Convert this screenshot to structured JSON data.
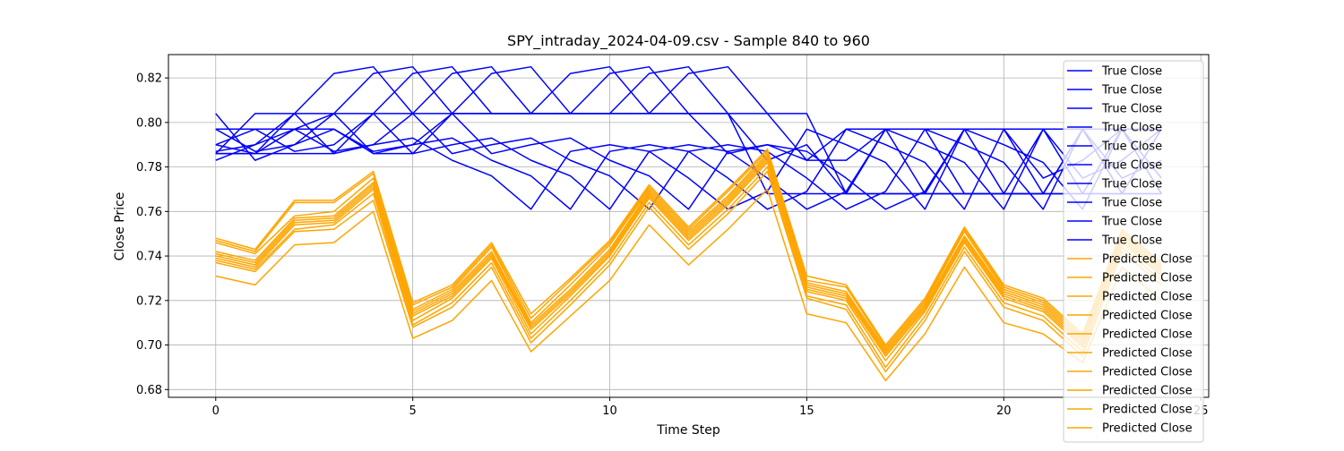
{
  "chart_data": {
    "type": "line",
    "title": "SPY_intraday_2024-04-09.csv - Sample 840 to 960",
    "xlabel": "Time Step",
    "ylabel": "Close Price",
    "xlim": [
      -1.2,
      25.2
    ],
    "ylim": [
      0.6765,
      0.8305
    ],
    "xticks": [
      {
        "value": 0,
        "label": "0"
      },
      {
        "value": 5,
        "label": "5"
      },
      {
        "value": 10,
        "label": "10"
      },
      {
        "value": 15,
        "label": "15"
      },
      {
        "value": 20,
        "label": "20"
      },
      {
        "value": 25,
        "label": "25"
      }
    ],
    "yticks": [
      {
        "value": 0.68,
        "label": "0.68"
      },
      {
        "value": 0.7,
        "label": "0.70"
      },
      {
        "value": 0.72,
        "label": "0.72"
      },
      {
        "value": 0.74,
        "label": "0.74"
      },
      {
        "value": 0.76,
        "label": "0.76"
      },
      {
        "value": 0.78,
        "label": "0.78"
      },
      {
        "value": 0.8,
        "label": "0.80"
      },
      {
        "value": 0.82,
        "label": "0.82"
      }
    ],
    "grid": true,
    "legend_position": "top-right",
    "colors": {
      "true": "#0000ff",
      "predicted": "#ffa500"
    },
    "series": [
      {
        "name": "True Close",
        "group": "true",
        "x": [
          0,
          1,
          2,
          3,
          4,
          5,
          6,
          7,
          8,
          9,
          10,
          11,
          12,
          13,
          14,
          15,
          16,
          17,
          18,
          19,
          20,
          21,
          22,
          23,
          24
        ],
        "values": [
          0.804,
          0.783,
          0.79,
          0.797,
          0.787,
          0.79,
          0.804,
          0.786,
          0.79,
          0.793,
          0.783,
          0.776,
          0.761,
          0.787,
          0.79,
          0.787,
          0.775,
          0.761,
          0.769,
          0.797,
          0.79,
          0.782,
          0.761,
          0.797,
          0.797
        ]
      },
      {
        "name": "True Close",
        "group": "true",
        "x": [
          0,
          1,
          2,
          3,
          4,
          5,
          6,
          7,
          8,
          9,
          10,
          11,
          12,
          13,
          14,
          15,
          16,
          17,
          18,
          19,
          20,
          21,
          22,
          23,
          24
        ],
        "values": [
          0.783,
          0.79,
          0.797,
          0.787,
          0.79,
          0.804,
          0.786,
          0.79,
          0.793,
          0.783,
          0.776,
          0.761,
          0.787,
          0.79,
          0.787,
          0.775,
          0.761,
          0.769,
          0.797,
          0.79,
          0.782,
          0.761,
          0.797,
          0.797,
          0.775
        ]
      },
      {
        "name": "True Close",
        "group": "true",
        "x": [
          0,
          1,
          2,
          3,
          4,
          5,
          6,
          7,
          8,
          9,
          10,
          11,
          12,
          13,
          14,
          15,
          16,
          17,
          18,
          19,
          20,
          21,
          22,
          23,
          24
        ],
        "values": [
          0.79,
          0.797,
          0.787,
          0.79,
          0.804,
          0.786,
          0.79,
          0.793,
          0.783,
          0.776,
          0.761,
          0.787,
          0.79,
          0.787,
          0.775,
          0.761,
          0.769,
          0.797,
          0.79,
          0.782,
          0.761,
          0.797,
          0.797,
          0.775,
          0.783
        ]
      },
      {
        "name": "True Close",
        "group": "true",
        "x": [
          0,
          1,
          2,
          3,
          4,
          5,
          6,
          7,
          8,
          9,
          10,
          11,
          12,
          13,
          14,
          15,
          16,
          17,
          18,
          19,
          20,
          21,
          22,
          23,
          24
        ],
        "values": [
          0.797,
          0.787,
          0.79,
          0.804,
          0.786,
          0.79,
          0.793,
          0.783,
          0.776,
          0.761,
          0.787,
          0.79,
          0.787,
          0.775,
          0.761,
          0.769,
          0.797,
          0.79,
          0.782,
          0.761,
          0.797,
          0.797,
          0.775,
          0.783,
          0.797
        ]
      },
      {
        "name": "True Close",
        "group": "true",
        "x": [
          0,
          1,
          2,
          3,
          4,
          5,
          6,
          7,
          8,
          9,
          10,
          11,
          12,
          13,
          14,
          15,
          16,
          17,
          18,
          19,
          20,
          21,
          22,
          23,
          24
        ],
        "values": [
          0.787,
          0.79,
          0.804,
          0.786,
          0.79,
          0.793,
          0.783,
          0.776,
          0.761,
          0.787,
          0.79,
          0.787,
          0.775,
          0.761,
          0.769,
          0.797,
          0.79,
          0.782,
          0.761,
          0.797,
          0.797,
          0.775,
          0.783,
          0.797,
          0.768
        ]
      },
      {
        "name": "True Close",
        "group": "true",
        "x": [
          0,
          1,
          2,
          3,
          4,
          5,
          6,
          7,
          8,
          9,
          10,
          11,
          12,
          13,
          14,
          15,
          16,
          17,
          18,
          19,
          20,
          21,
          22,
          23,
          24
        ],
        "values": [
          0.786,
          0.786,
          0.804,
          0.822,
          0.825,
          0.804,
          0.804,
          0.804,
          0.804,
          0.804,
          0.804,
          0.804,
          0.804,
          0.804,
          0.804,
          0.804,
          0.768,
          0.768,
          0.768,
          0.768,
          0.768,
          0.768,
          0.768,
          0.768,
          0.768
        ]
      },
      {
        "name": "True Close",
        "group": "true",
        "x": [
          0,
          1,
          2,
          3,
          4,
          5,
          6,
          7,
          8,
          9,
          10,
          11,
          12,
          13,
          14,
          15,
          16,
          17,
          18,
          19,
          20,
          21,
          22,
          23,
          24
        ],
        "values": [
          0.786,
          0.804,
          0.804,
          0.804,
          0.822,
          0.825,
          0.804,
          0.804,
          0.804,
          0.804,
          0.804,
          0.804,
          0.804,
          0.804,
          0.768,
          0.768,
          0.768,
          0.768,
          0.768,
          0.768,
          0.768,
          0.768,
          0.768,
          0.768,
          0.768
        ]
      },
      {
        "name": "True Close",
        "group": "true",
        "x": [
          0,
          1,
          2,
          3,
          4,
          5,
          6,
          7,
          8,
          9,
          10,
          11,
          12,
          13,
          14,
          15,
          16,
          17,
          18,
          19,
          20,
          21,
          22,
          23,
          24
        ],
        "values": [
          0.797,
          0.797,
          0.797,
          0.804,
          0.804,
          0.822,
          0.825,
          0.804,
          0.804,
          0.804,
          0.822,
          0.825,
          0.804,
          0.786,
          0.79,
          0.783,
          0.797,
          0.797,
          0.797,
          0.797,
          0.768,
          0.768,
          0.797,
          0.768,
          0.797
        ]
      },
      {
        "name": "True Close",
        "group": "true",
        "x": [
          0,
          1,
          2,
          3,
          4,
          5,
          6,
          7,
          8,
          9,
          10,
          11,
          12,
          13,
          14,
          15,
          16,
          17,
          18,
          19,
          20,
          21,
          22,
          23,
          24
        ],
        "values": [
          0.79,
          0.786,
          0.786,
          0.786,
          0.804,
          0.804,
          0.822,
          0.825,
          0.804,
          0.822,
          0.825,
          0.804,
          0.822,
          0.825,
          0.804,
          0.783,
          0.783,
          0.797,
          0.768,
          0.797,
          0.797,
          0.768,
          0.797,
          0.768,
          0.797
        ]
      },
      {
        "name": "True Close",
        "group": "true",
        "x": [
          0,
          1,
          2,
          3,
          4,
          5,
          6,
          7,
          8,
          9,
          10,
          11,
          12,
          13,
          14,
          15,
          16,
          17,
          18,
          19,
          20,
          21,
          22,
          23,
          24
        ],
        "values": [
          0.786,
          0.786,
          0.797,
          0.797,
          0.786,
          0.786,
          0.804,
          0.822,
          0.825,
          0.804,
          0.804,
          0.822,
          0.825,
          0.804,
          0.783,
          0.79,
          0.768,
          0.797,
          0.797,
          0.768,
          0.768,
          0.797,
          0.768,
          0.797,
          0.768
        ]
      },
      {
        "name": "Predicted Close",
        "group": "predicted",
        "x": [
          0,
          1,
          2,
          3,
          4,
          5,
          6,
          7,
          8,
          9,
          10,
          11,
          12,
          13,
          14,
          15,
          16,
          17,
          18,
          19,
          20,
          21,
          22,
          23,
          24
        ],
        "values": [
          0.748,
          0.743,
          0.765,
          0.765,
          0.778,
          0.719,
          0.727,
          0.746,
          0.714,
          0.73,
          0.747,
          0.772,
          0.753,
          0.77,
          0.788,
          0.731,
          0.727,
          0.7,
          0.721,
          0.753,
          0.727,
          0.721,
          0.705,
          0.752,
          0.737
        ]
      },
      {
        "name": "Predicted Close",
        "group": "predicted",
        "x": [
          0,
          1,
          2,
          3,
          4,
          5,
          6,
          7,
          8,
          9,
          10,
          11,
          12,
          13,
          14,
          15,
          16,
          17,
          18,
          19,
          20,
          21,
          22,
          23,
          24
        ],
        "values": [
          0.747,
          0.742,
          0.764,
          0.764,
          0.777,
          0.718,
          0.726,
          0.745,
          0.712,
          0.729,
          0.746,
          0.771,
          0.752,
          0.769,
          0.787,
          0.729,
          0.726,
          0.699,
          0.72,
          0.752,
          0.726,
          0.72,
          0.704,
          0.751,
          0.736
        ]
      },
      {
        "name": "Predicted Close",
        "group": "predicted",
        "x": [
          0,
          1,
          2,
          3,
          4,
          5,
          6,
          7,
          8,
          9,
          10,
          11,
          12,
          13,
          14,
          15,
          16,
          17,
          18,
          19,
          20,
          21,
          22,
          23,
          24
        ],
        "values": [
          0.746,
          0.741,
          0.758,
          0.76,
          0.775,
          0.716,
          0.725,
          0.744,
          0.71,
          0.727,
          0.745,
          0.77,
          0.751,
          0.767,
          0.786,
          0.728,
          0.724,
          0.698,
          0.719,
          0.751,
          0.725,
          0.719,
          0.703,
          0.75,
          0.735
        ]
      },
      {
        "name": "Predicted Close",
        "group": "predicted",
        "x": [
          0,
          1,
          2,
          3,
          4,
          5,
          6,
          7,
          8,
          9,
          10,
          11,
          12,
          13,
          14,
          15,
          16,
          17,
          18,
          19,
          20,
          21,
          22,
          23,
          24
        ],
        "values": [
          0.742,
          0.738,
          0.757,
          0.758,
          0.773,
          0.715,
          0.724,
          0.742,
          0.709,
          0.725,
          0.743,
          0.769,
          0.75,
          0.766,
          0.785,
          0.727,
          0.723,
          0.697,
          0.718,
          0.749,
          0.724,
          0.718,
          0.702,
          0.749,
          0.734
        ]
      },
      {
        "name": "Predicted Close",
        "group": "predicted",
        "x": [
          0,
          1,
          2,
          3,
          4,
          5,
          6,
          7,
          8,
          9,
          10,
          11,
          12,
          13,
          14,
          15,
          16,
          17,
          18,
          19,
          20,
          21,
          22,
          23,
          24
        ],
        "values": [
          0.741,
          0.737,
          0.756,
          0.757,
          0.772,
          0.714,
          0.723,
          0.741,
          0.708,
          0.724,
          0.742,
          0.768,
          0.749,
          0.765,
          0.784,
          0.726,
          0.722,
          0.696,
          0.717,
          0.748,
          0.723,
          0.717,
          0.701,
          0.748,
          0.733
        ]
      },
      {
        "name": "Predicted Close",
        "group": "predicted",
        "x": [
          0,
          1,
          2,
          3,
          4,
          5,
          6,
          7,
          8,
          9,
          10,
          11,
          12,
          13,
          14,
          15,
          16,
          17,
          18,
          19,
          20,
          21,
          22,
          23,
          24
        ],
        "values": [
          0.74,
          0.736,
          0.755,
          0.756,
          0.771,
          0.713,
          0.722,
          0.74,
          0.707,
          0.723,
          0.741,
          0.767,
          0.748,
          0.764,
          0.783,
          0.725,
          0.721,
          0.695,
          0.716,
          0.747,
          0.722,
          0.716,
          0.7,
          0.747,
          0.732
        ]
      },
      {
        "name": "Predicted Close",
        "group": "predicted",
        "x": [
          0,
          1,
          2,
          3,
          4,
          5,
          6,
          7,
          8,
          9,
          10,
          11,
          12,
          13,
          14,
          15,
          16,
          17,
          18,
          19,
          20,
          21,
          22,
          23,
          24
        ],
        "values": [
          0.739,
          0.735,
          0.754,
          0.755,
          0.77,
          0.711,
          0.721,
          0.739,
          0.705,
          0.722,
          0.74,
          0.766,
          0.747,
          0.763,
          0.782,
          0.724,
          0.72,
          0.693,
          0.715,
          0.746,
          0.721,
          0.715,
          0.699,
          0.746,
          0.731
        ]
      },
      {
        "name": "Predicted Close",
        "group": "predicted",
        "x": [
          0,
          1,
          2,
          3,
          4,
          5,
          6,
          7,
          8,
          9,
          10,
          11,
          12,
          13,
          14,
          15,
          16,
          17,
          18,
          19,
          20,
          21,
          22,
          23,
          24
        ],
        "values": [
          0.738,
          0.734,
          0.752,
          0.754,
          0.768,
          0.709,
          0.719,
          0.737,
          0.703,
          0.72,
          0.738,
          0.764,
          0.745,
          0.761,
          0.78,
          0.722,
          0.718,
          0.69,
          0.713,
          0.744,
          0.719,
          0.713,
          0.697,
          0.744,
          0.729
        ]
      },
      {
        "name": "Predicted Close",
        "group": "predicted",
        "x": [
          0,
          1,
          2,
          3,
          4,
          5,
          6,
          7,
          8,
          9,
          10,
          11,
          12,
          13,
          14,
          15,
          16,
          17,
          18,
          19,
          20,
          21,
          22,
          23,
          24
        ],
        "values": [
          0.737,
          0.733,
          0.751,
          0.752,
          0.765,
          0.708,
          0.717,
          0.735,
          0.701,
          0.718,
          0.736,
          0.762,
          0.743,
          0.759,
          0.778,
          0.721,
          0.716,
          0.688,
          0.711,
          0.742,
          0.717,
          0.711,
          0.695,
          0.742,
          0.727
        ]
      },
      {
        "name": "Predicted Close",
        "group": "predicted",
        "x": [
          0,
          1,
          2,
          3,
          4,
          5,
          6,
          7,
          8,
          9,
          10,
          11,
          12,
          13,
          14,
          15,
          16,
          17,
          18,
          19,
          20,
          21,
          22,
          23,
          24
        ],
        "values": [
          0.731,
          0.727,
          0.745,
          0.746,
          0.76,
          0.703,
          0.711,
          0.729,
          0.697,
          0.713,
          0.729,
          0.754,
          0.736,
          0.752,
          0.77,
          0.714,
          0.71,
          0.684,
          0.705,
          0.735,
          0.71,
          0.705,
          0.692,
          0.735,
          0.72
        ]
      }
    ]
  }
}
